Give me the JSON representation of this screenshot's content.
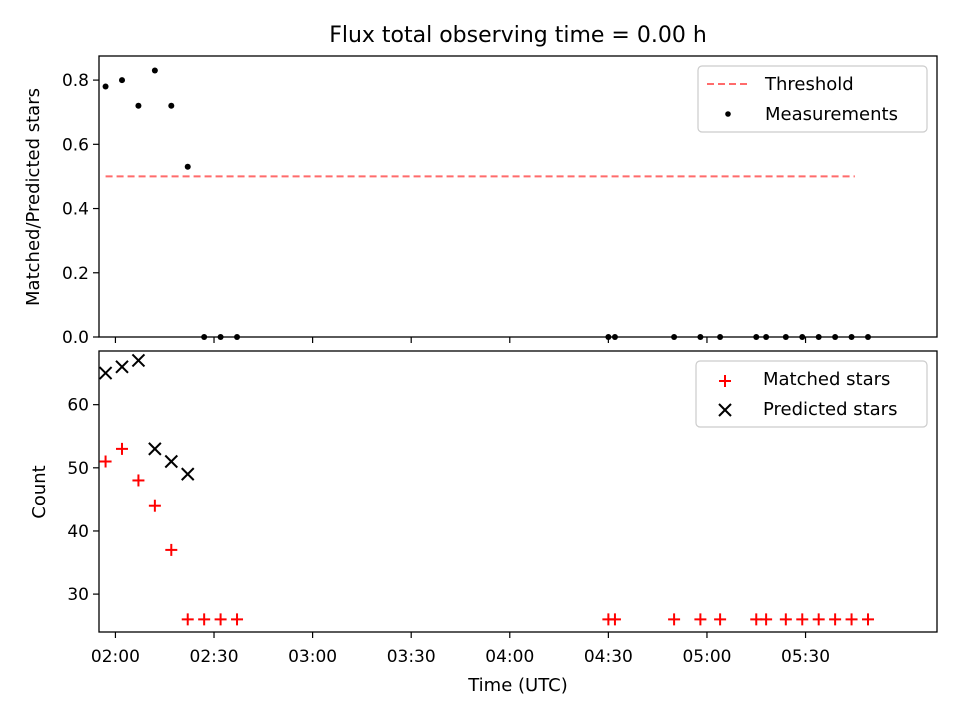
{
  "title": "Flux total observing time = 0.00 h",
  "colors": {
    "threshold": "#ff6b6b",
    "measurement": "#000000",
    "matched": "#ff0000",
    "predicted": "#000000"
  },
  "chart_data": [
    {
      "type": "scatter",
      "panel": "top",
      "ylabel": "Matched/Predicted stars",
      "xlim_min": [
        115,
        370
      ],
      "ylim": [
        0,
        0.875
      ],
      "yticks": [
        0.0,
        0.2,
        0.4,
        0.6,
        0.8
      ],
      "ytick_labels": [
        "0.0",
        "0.2",
        "0.4",
        "0.6",
        "0.8"
      ],
      "threshold": {
        "label": "Threshold",
        "value": 0.5,
        "x_range_min": [
          117,
          345
        ]
      },
      "series": [
        {
          "name": "Measurements",
          "x_min": [
            117,
            122,
            127,
            132,
            137,
            142,
            147,
            152,
            157,
            270,
            272,
            290,
            298,
            304,
            315,
            318,
            324,
            329,
            334,
            339,
            344,
            349
          ],
          "y": [
            0.78,
            0.8,
            0.72,
            0.83,
            0.72,
            0.53,
            0,
            0,
            0,
            0,
            0,
            0,
            0,
            0,
            0,
            0,
            0,
            0,
            0,
            0,
            0,
            0
          ]
        }
      ],
      "legend": [
        "Threshold",
        "Measurements"
      ]
    },
    {
      "type": "scatter",
      "panel": "bottom",
      "ylabel": "Count",
      "xlabel": "Time (UTC)",
      "xlim_min": [
        115,
        370
      ],
      "ylim": [
        24,
        68.5
      ],
      "yticks": [
        30,
        40,
        50,
        60
      ],
      "ytick_labels": [
        "30",
        "40",
        "50",
        "60"
      ],
      "xticks_min": [
        120,
        150,
        180,
        210,
        240,
        270,
        300,
        330
      ],
      "xtick_labels": [
        "02:00",
        "02:30",
        "03:00",
        "03:30",
        "04:00",
        "04:30",
        "05:00",
        "05:30"
      ],
      "series": [
        {
          "name": "Matched stars",
          "x_min": [
            117,
            122,
            127,
            132,
            137,
            142,
            147,
            152,
            157,
            270,
            272,
            290,
            298,
            304,
            315,
            318,
            324,
            329,
            334,
            339,
            344,
            349
          ],
          "y": [
            51,
            53,
            48,
            44,
            37,
            26,
            26,
            26,
            26,
            26,
            26,
            26,
            26,
            26,
            26,
            26,
            26,
            26,
            26,
            26,
            26,
            26
          ]
        },
        {
          "name": "Predicted stars",
          "x_min": [
            117,
            122,
            127,
            132,
            137,
            142
          ],
          "y": [
            65,
            66,
            67,
            53,
            51,
            49
          ]
        }
      ],
      "legend": [
        "Matched stars",
        "Predicted stars"
      ]
    }
  ]
}
